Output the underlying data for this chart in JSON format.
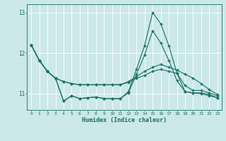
{
  "xlabel": "Humidex (Indice chaleur)",
  "x_values": [
    0,
    1,
    2,
    3,
    4,
    5,
    6,
    7,
    8,
    9,
    10,
    11,
    12,
    13,
    14,
    15,
    16,
    17,
    18,
    19,
    20,
    21,
    22,
    23
  ],
  "line1": [
    12.2,
    11.82,
    11.55,
    11.38,
    10.82,
    10.95,
    10.88,
    10.9,
    10.92,
    10.88,
    10.88,
    10.88,
    11.05,
    11.6,
    12.18,
    13.0,
    12.72,
    12.18,
    11.5,
    11.05,
    11.02,
    11.02,
    10.98,
    10.9
  ],
  "line2": [
    12.2,
    11.82,
    11.55,
    11.38,
    11.3,
    11.25,
    11.22,
    11.22,
    11.22,
    11.22,
    11.22,
    11.22,
    11.3,
    11.42,
    11.55,
    11.65,
    11.72,
    11.65,
    11.58,
    11.48,
    11.38,
    11.25,
    11.1,
    10.98
  ],
  "line3": [
    12.2,
    11.82,
    11.55,
    11.38,
    11.3,
    11.25,
    11.22,
    11.22,
    11.22,
    11.22,
    11.22,
    11.22,
    11.28,
    11.38,
    11.45,
    11.55,
    11.6,
    11.55,
    11.5,
    11.2,
    11.08,
    11.08,
    11.02,
    10.95
  ],
  "line4": [
    12.2,
    11.82,
    11.55,
    11.38,
    10.82,
    10.95,
    10.88,
    10.9,
    10.92,
    10.88,
    10.88,
    10.88,
    11.02,
    11.48,
    11.95,
    12.55,
    12.25,
    11.82,
    11.32,
    11.05,
    11.02,
    11.0,
    10.95,
    10.9
  ],
  "bg_color": "#cce8e8",
  "grid_color": "#ffffff",
  "line_color": "#1a6e65",
  "ylim": [
    10.6,
    13.2
  ],
  "yticks": [
    11,
    12,
    13
  ],
  "xlim": [
    -0.5,
    23.5
  ]
}
